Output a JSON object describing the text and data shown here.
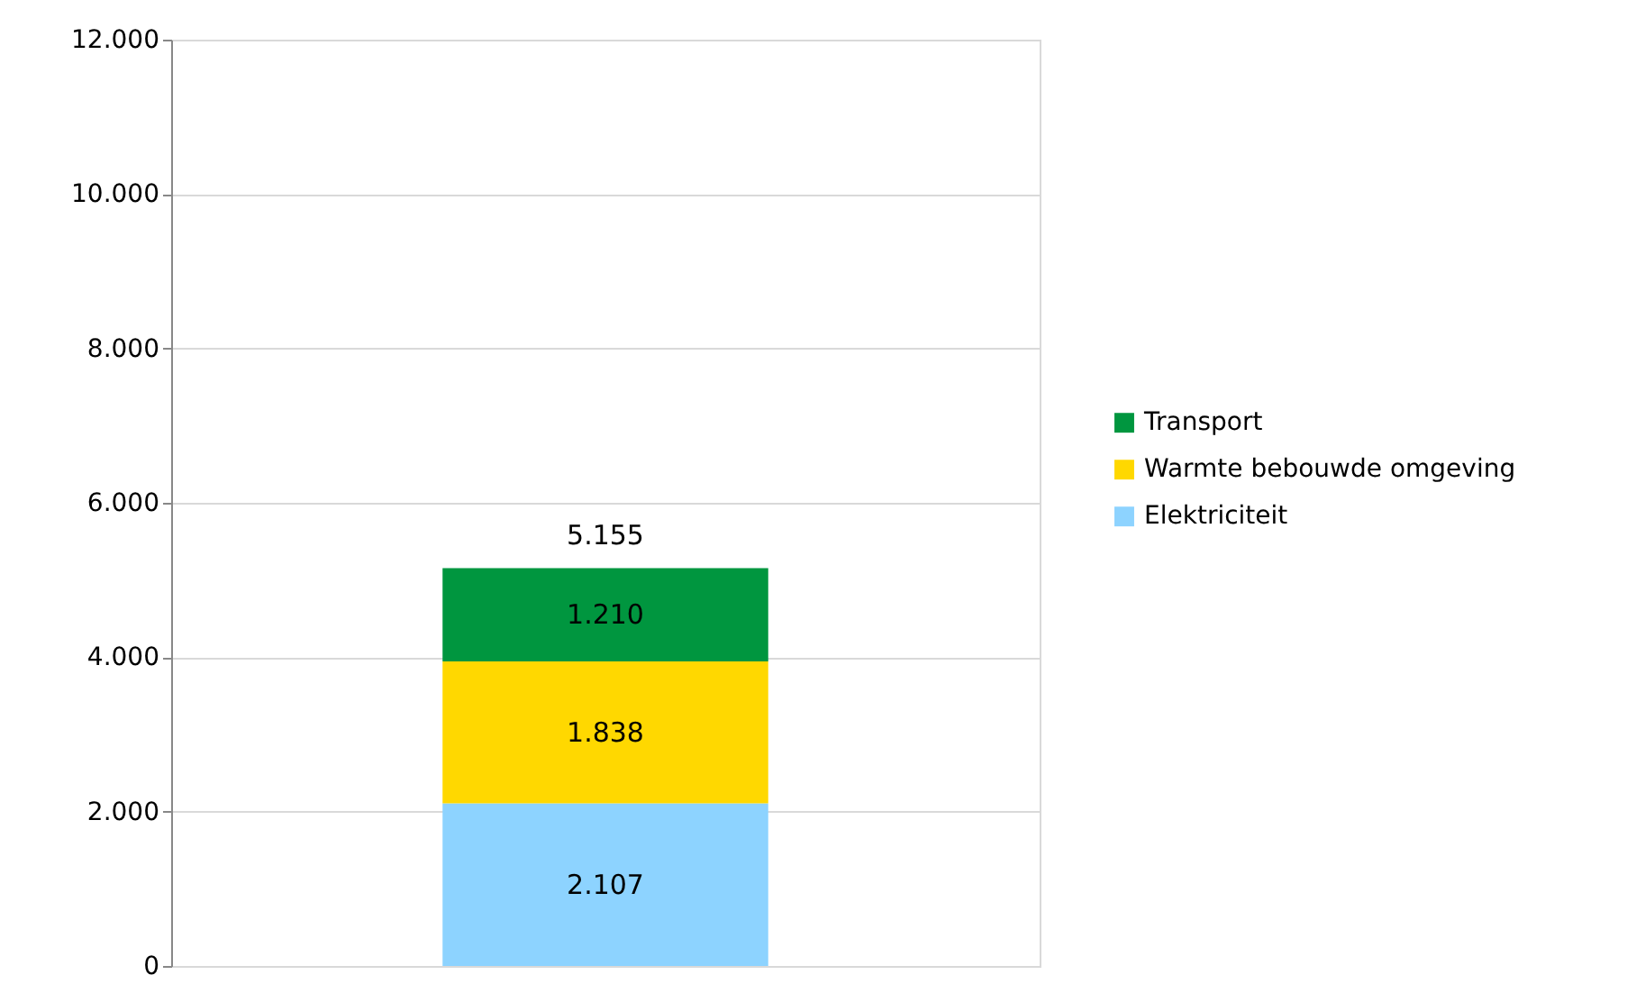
{
  "chart_data": {
    "type": "bar",
    "stacked": true,
    "categories": [
      null
    ],
    "series": [
      {
        "name": "Elektriciteit",
        "color": "#8dd3ff",
        "values": [
          2107
        ],
        "value_labels": [
          "2.107"
        ]
      },
      {
        "name": "Warmte bebouwde omgeving",
        "color": "#ffd800",
        "values": [
          1838
        ],
        "value_labels": [
          "1.838"
        ]
      },
      {
        "name": "Transport",
        "color": "#00963f",
        "values": [
          1210
        ],
        "value_labels": [
          "1.210"
        ]
      }
    ],
    "totals": [
      "5.155"
    ],
    "ylim": [
      0,
      12000
    ],
    "yticks": [
      {
        "value": 0,
        "label": "0"
      },
      {
        "value": 2000,
        "label": "2.000"
      },
      {
        "value": 4000,
        "label": "4.000"
      },
      {
        "value": 6000,
        "label": "6.000"
      },
      {
        "value": 8000,
        "label": "8.000"
      },
      {
        "value": 10000,
        "label": "10.000"
      },
      {
        "value": 12000,
        "label": "12.000"
      }
    ],
    "grid": "y",
    "legend": "right"
  }
}
